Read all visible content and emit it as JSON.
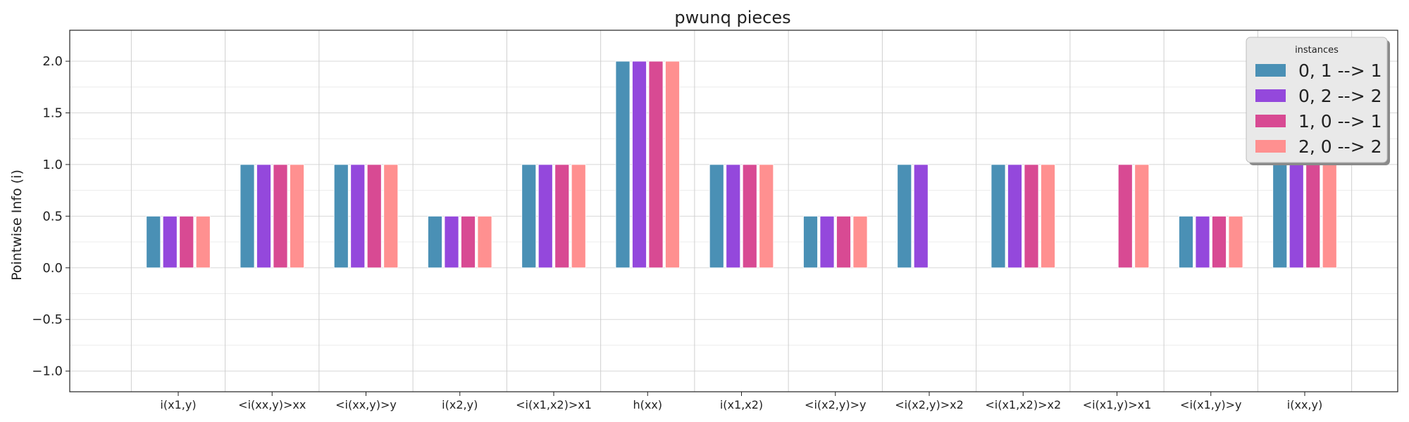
{
  "chart_data": {
    "type": "bar",
    "title": "pwunq pieces",
    "xlabel": "",
    "ylabel": "Pointwise Info (i)",
    "ylim": [
      -1.2,
      2.3
    ],
    "yticks": [
      "2.0",
      "1.5",
      "1.0",
      "0.5",
      "0.0",
      "−0.5",
      "−1.0"
    ],
    "ytick_values": [
      2.0,
      1.5,
      1.0,
      0.5,
      0.0,
      -0.5,
      -1.0
    ],
    "grid": true,
    "legend_position": "top-right",
    "legend_title": "instances",
    "categories": [
      "i(x1,y)",
      "<i(xx,y)>xx",
      "<i(xx,y)>y",
      "i(x2,y)",
      "<i(x1,x2)>x1",
      "h(xx)",
      "i(x1,x2)",
      "<i(x2,y)>y",
      "<i(x2,y)>x2",
      "<i(x1,x2)>x2",
      "<i(x1,y)>x1",
      "<i(x1,y)>y",
      "i(xx,y)"
    ],
    "series": [
      {
        "name": "0, 1 --> 1",
        "color": "#4a90b5",
        "values": [
          0.5,
          1.0,
          1.0,
          0.5,
          1.0,
          2.0,
          1.0,
          0.5,
          1.0,
          1.0,
          0.0,
          0.5,
          1.0
        ]
      },
      {
        "name": "0, 2 --> 2",
        "color": "#9448dc",
        "values": [
          0.5,
          1.0,
          1.0,
          0.5,
          1.0,
          2.0,
          1.0,
          0.5,
          1.0,
          1.0,
          0.0,
          0.5,
          1.0
        ]
      },
      {
        "name": "1, 0 --> 1",
        "color": "#d84a93",
        "values": [
          0.5,
          1.0,
          1.0,
          0.5,
          1.0,
          2.0,
          1.0,
          0.5,
          0.0,
          1.0,
          1.0,
          0.5,
          1.0
        ]
      },
      {
        "name": "2, 0 --> 2",
        "color": "#ff9090",
        "values": [
          0.5,
          1.0,
          1.0,
          0.5,
          1.0,
          2.0,
          1.0,
          0.5,
          0.0,
          1.0,
          1.0,
          0.5,
          1.0
        ]
      }
    ]
  }
}
